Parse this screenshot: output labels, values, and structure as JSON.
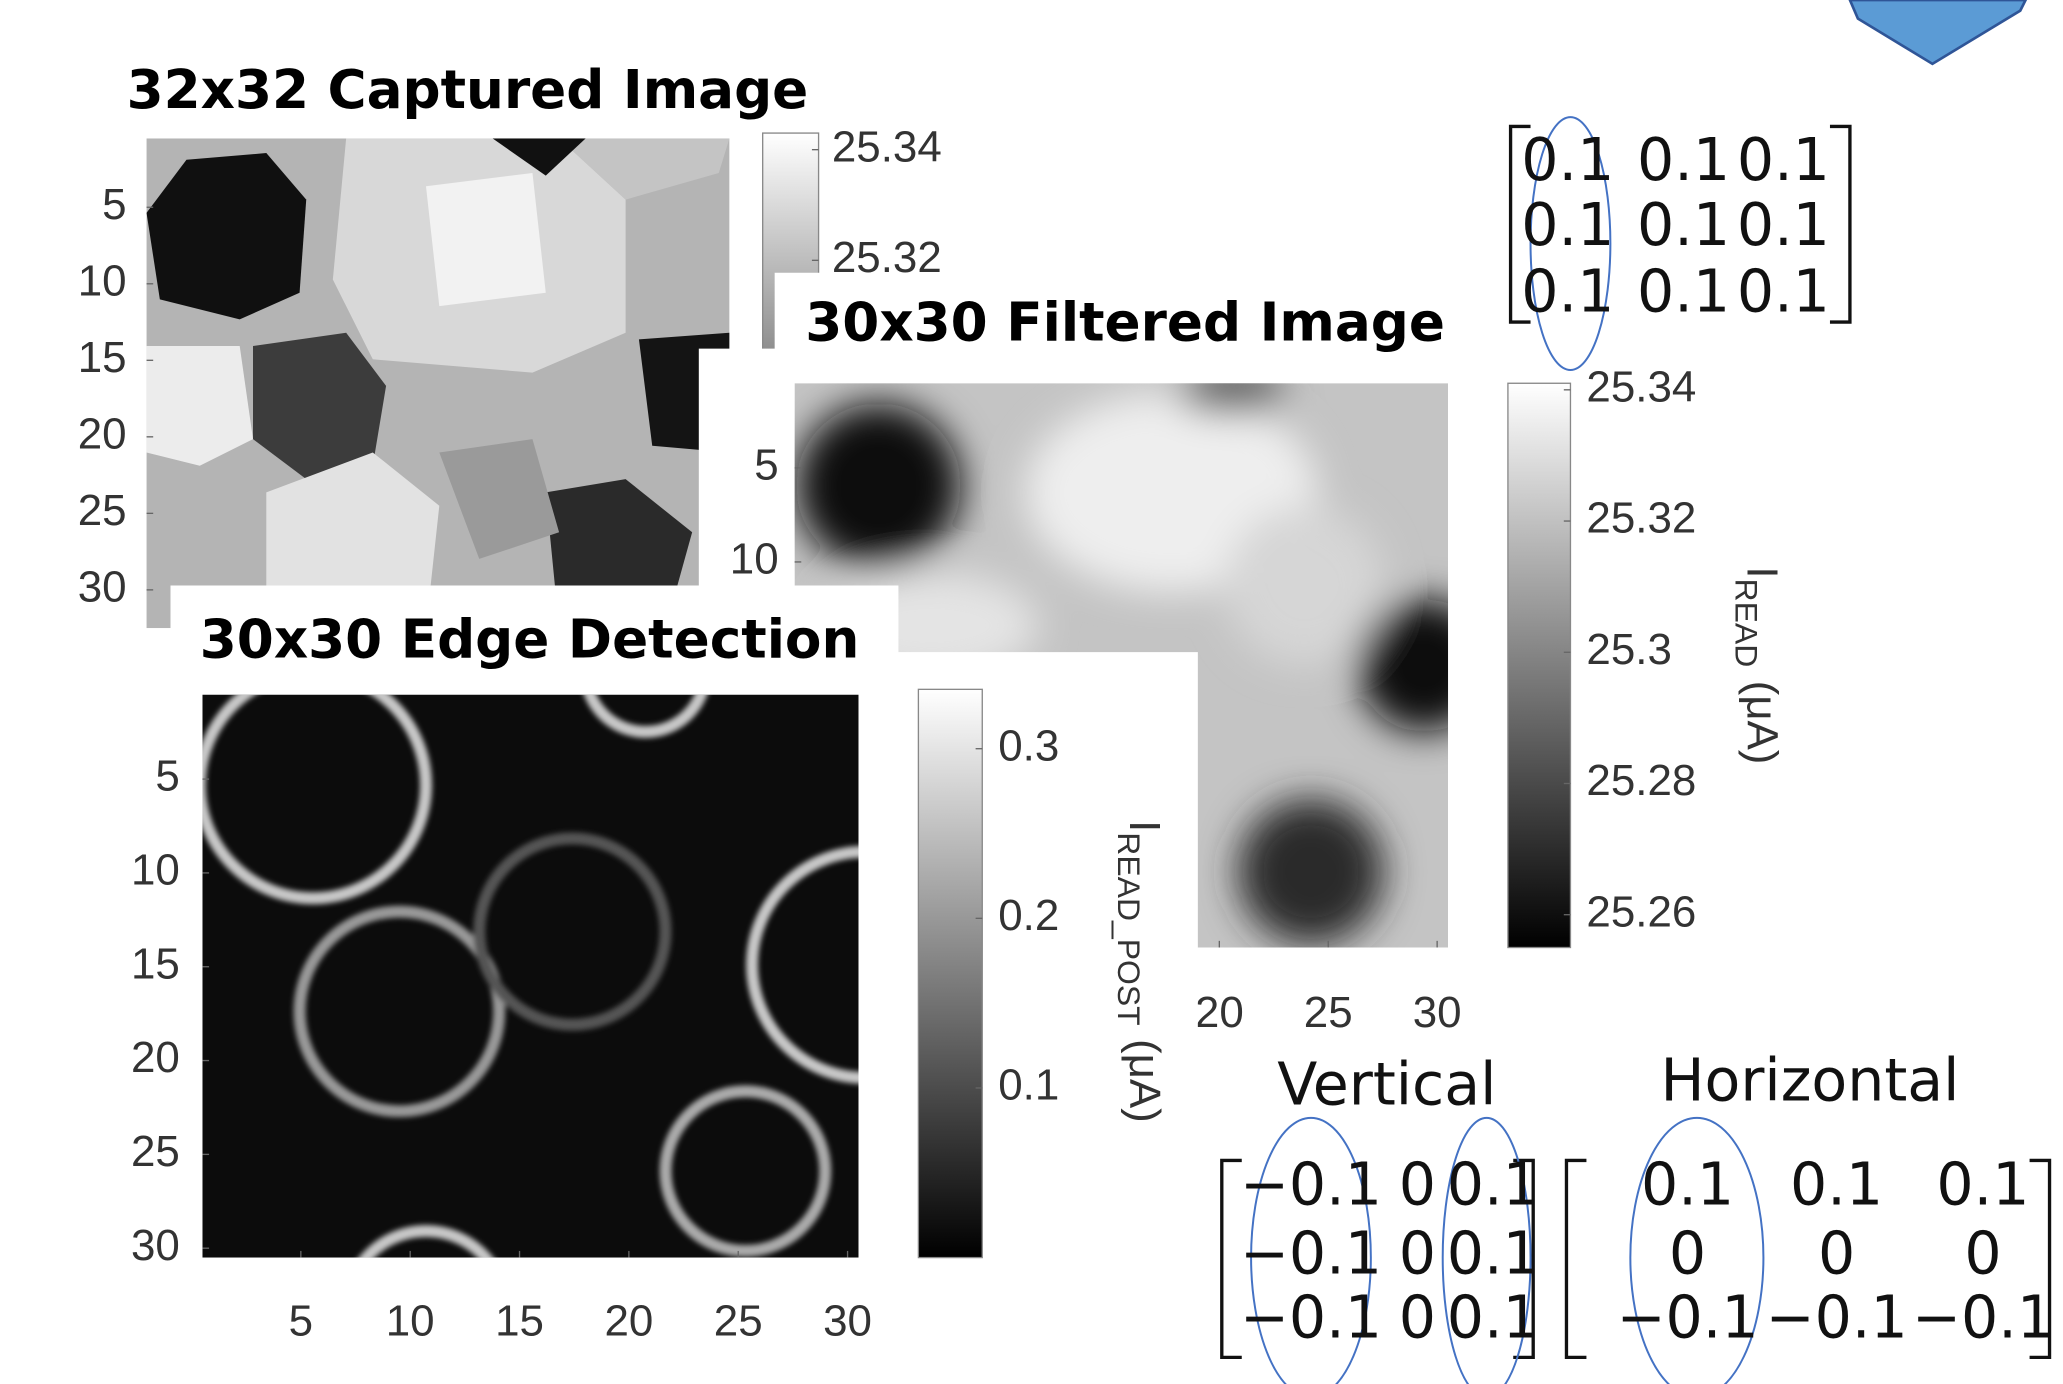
{
  "panels": [
    {
      "title": "32x32 Captured Image",
      "ylim": [
        0.5,
        32.5
      ],
      "yticks": [
        5,
        10,
        15,
        20,
        25,
        30
      ],
      "clim": [
        25.254,
        25.343
      ],
      "colorbar_ticks": [
        25.34,
        25.32
      ]
    },
    {
      "title": "30x30 Filtered Image",
      "xlim": [
        0.5,
        30.5
      ],
      "ylim": [
        0.5,
        30.5
      ],
      "xticks": [
        20,
        25,
        30
      ],
      "yticks": [
        5,
        10
      ],
      "clim": [
        25.255,
        25.341
      ],
      "colorbar_ticks": [
        25.34,
        25.32,
        25.3,
        25.28,
        25.26
      ],
      "colorbar_label": {
        "symbol": "I",
        "subscript": "READ",
        "unit": "(μA)"
      }
    },
    {
      "title": "30x30 Edge Detection",
      "xlim": [
        0.5,
        30.5
      ],
      "ylim": [
        0.5,
        30.5
      ],
      "xticks": [
        5,
        10,
        15,
        20,
        25,
        30
      ],
      "yticks": [
        5,
        10,
        15,
        20,
        25,
        30
      ],
      "clim": [
        0,
        0.335
      ],
      "colorbar_ticks": [
        0.3,
        0.2,
        0.1
      ],
      "colorbar_label": {
        "symbol": "I",
        "subscript": "READ_POST",
        "unit": "(μA)"
      }
    }
  ],
  "kernels": {
    "average": {
      "rows": [
        [
          0.1,
          0.1,
          0.1
        ],
        [
          0.1,
          0.1,
          0.1
        ],
        [
          0.1,
          0.1,
          0.1
        ]
      ]
    },
    "vertical": {
      "label": "Vertical",
      "rows": [
        [
          {
            "value": -0.1,
            "label": "−0.1"
          },
          0,
          0.1
        ],
        [
          {
            "value": -0.1,
            "label": "−0.1"
          },
          0,
          0.1
        ],
        [
          {
            "value": -0.1,
            "label": "−0.1"
          },
          0,
          0.1
        ]
      ]
    },
    "horizontal": {
      "label": "Horizontal",
      "rows": [
        [
          0.1,
          0.1,
          0.1
        ],
        [
          0,
          0,
          0
        ],
        [
          {
            "value": -0.1,
            "label": "−0.1"
          },
          {
            "value": -0.1,
            "label": "−0.1"
          },
          {
            "value": -0.1,
            "label": "−0.1"
          }
        ]
      ]
    }
  }
}
